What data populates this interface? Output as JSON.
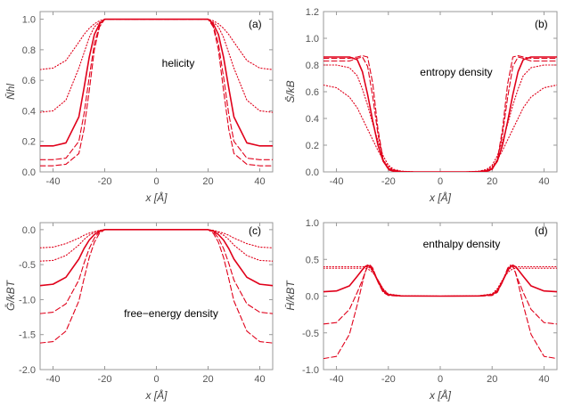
{
  "chart_data": [
    {
      "panel": "a",
      "type": "line",
      "panel_label": "(a)",
      "annotation": "helicity",
      "xlabel": "x [Å]",
      "ylabel": "N̄hl",
      "xlim": [
        -45,
        45
      ],
      "ylim": [
        0.0,
        1.05
      ],
      "xticks": [
        "-40",
        "-20",
        "0",
        "20",
        "40"
      ],
      "yticks": [
        "0.0",
        "0.2",
        "0.4",
        "0.6",
        "0.8",
        "1.0"
      ],
      "x": [
        -45,
        -40,
        -35,
        -30,
        -28,
        -26,
        -24,
        -22,
        -20,
        -15,
        -10,
        -5,
        0,
        5,
        10,
        15,
        20,
        22,
        24,
        26,
        28,
        30,
        35,
        40,
        45
      ],
      "series": [
        {
          "style": "dotted",
          "values": [
            0.67,
            0.68,
            0.73,
            0.85,
            0.9,
            0.94,
            0.97,
            0.99,
            1.0,
            1.0,
            1.0,
            1.0,
            1.0,
            1.0,
            1.0,
            1.0,
            1.0,
            0.99,
            0.97,
            0.94,
            0.9,
            0.85,
            0.73,
            0.68,
            0.67
          ]
        },
        {
          "style": "dotted",
          "values": [
            0.39,
            0.4,
            0.47,
            0.68,
            0.78,
            0.88,
            0.95,
            0.98,
            1.0,
            1.0,
            1.0,
            1.0,
            1.0,
            1.0,
            1.0,
            1.0,
            1.0,
            0.98,
            0.95,
            0.88,
            0.78,
            0.68,
            0.47,
            0.4,
            0.39
          ]
        },
        {
          "style": "solid",
          "values": [
            0.17,
            0.17,
            0.19,
            0.36,
            0.55,
            0.75,
            0.9,
            0.97,
            1.0,
            1.0,
            1.0,
            1.0,
            1.0,
            1.0,
            1.0,
            1.0,
            1.0,
            0.97,
            0.9,
            0.75,
            0.55,
            0.36,
            0.19,
            0.17,
            0.17
          ]
        },
        {
          "style": "dashed",
          "values": [
            0.08,
            0.08,
            0.09,
            0.2,
            0.38,
            0.62,
            0.84,
            0.96,
            1.0,
            1.0,
            1.0,
            1.0,
            1.0,
            1.0,
            1.0,
            1.0,
            1.0,
            0.96,
            0.84,
            0.62,
            0.38,
            0.2,
            0.09,
            0.08,
            0.08
          ]
        },
        {
          "style": "dashed",
          "values": [
            0.04,
            0.04,
            0.05,
            0.12,
            0.28,
            0.53,
            0.8,
            0.95,
            1.0,
            1.0,
            1.0,
            1.0,
            1.0,
            1.0,
            1.0,
            1.0,
            1.0,
            0.95,
            0.8,
            0.53,
            0.28,
            0.12,
            0.05,
            0.04,
            0.04
          ]
        }
      ]
    },
    {
      "panel": "b",
      "type": "line",
      "panel_label": "(b)",
      "annotation": "entropy density",
      "xlabel": "x [Å]",
      "ylabel": "S̄/kB",
      "xlim": [
        -45,
        45
      ],
      "ylim": [
        0.0,
        1.2
      ],
      "xticks": [
        "-40",
        "-20",
        "0",
        "20",
        "40"
      ],
      "yticks": [
        "0.0",
        "0.2",
        "0.4",
        "0.6",
        "0.8",
        "1.0",
        "1.2"
      ],
      "x": [
        -45,
        -40,
        -35,
        -32,
        -30,
        -28,
        -26,
        -24,
        -22,
        -20,
        -18,
        -15,
        -10,
        0,
        10,
        15,
        18,
        20,
        22,
        24,
        26,
        28,
        30,
        32,
        35,
        40,
        45
      ],
      "series": [
        {
          "style": "dotted",
          "values": [
            0.65,
            0.63,
            0.56,
            0.48,
            0.4,
            0.32,
            0.24,
            0.16,
            0.09,
            0.04,
            0.015,
            0.005,
            0.0,
            0.0,
            0.0,
            0.005,
            0.015,
            0.04,
            0.09,
            0.16,
            0.24,
            0.32,
            0.4,
            0.48,
            0.56,
            0.63,
            0.65
          ]
        },
        {
          "style": "dotted",
          "values": [
            0.8,
            0.8,
            0.78,
            0.72,
            0.62,
            0.5,
            0.36,
            0.23,
            0.12,
            0.05,
            0.02,
            0.005,
            0.0,
            0.0,
            0.0,
            0.005,
            0.02,
            0.05,
            0.12,
            0.23,
            0.36,
            0.5,
            0.62,
            0.72,
            0.78,
            0.8,
            0.8
          ]
        },
        {
          "style": "solid",
          "values": [
            0.86,
            0.86,
            0.86,
            0.84,
            0.75,
            0.58,
            0.38,
            0.2,
            0.08,
            0.025,
            0.01,
            0.002,
            0.0,
            0.0,
            0.0,
            0.002,
            0.01,
            0.025,
            0.08,
            0.2,
            0.38,
            0.58,
            0.75,
            0.84,
            0.86,
            0.86,
            0.86
          ]
        },
        {
          "style": "dashed",
          "values": [
            0.83,
            0.83,
            0.83,
            0.85,
            0.86,
            0.79,
            0.56,
            0.28,
            0.09,
            0.02,
            0.005,
            0.0,
            0.0,
            0.0,
            0.0,
            0.0,
            0.005,
            0.02,
            0.09,
            0.28,
            0.56,
            0.79,
            0.86,
            0.85,
            0.83,
            0.83,
            0.83
          ]
        },
        {
          "style": "dashed",
          "values": [
            0.85,
            0.85,
            0.85,
            0.86,
            0.87,
            0.86,
            0.66,
            0.32,
            0.09,
            0.015,
            0.003,
            0.0,
            0.0,
            0.0,
            0.0,
            0.0,
            0.003,
            0.015,
            0.09,
            0.32,
            0.66,
            0.86,
            0.87,
            0.86,
            0.85,
            0.85,
            0.85
          ]
        }
      ]
    },
    {
      "panel": "c",
      "type": "line",
      "panel_label": "(c)",
      "annotation": "free−energy density",
      "xlabel": "x [Å]",
      "ylabel": "Ḡ/kBT",
      "xlim": [
        -45,
        45
      ],
      "ylim": [
        -2.0,
        0.1
      ],
      "xticks": [
        "-40",
        "-20",
        "0",
        "20",
        "40"
      ],
      "yticks": [
        "0.0",
        "-0.5",
        "-1.0",
        "-1.5",
        "-2.0"
      ],
      "x": [
        -45,
        -40,
        -35,
        -30,
        -28,
        -26,
        -24,
        -22,
        -20,
        -15,
        -10,
        -5,
        0,
        5,
        10,
        15,
        20,
        22,
        24,
        26,
        28,
        30,
        35,
        40,
        45
      ],
      "series": [
        {
          "style": "dotted",
          "values": [
            -0.26,
            -0.25,
            -0.2,
            -0.12,
            -0.08,
            -0.05,
            -0.03,
            -0.01,
            0.0,
            0.0,
            0.0,
            0.0,
            0.0,
            0.0,
            0.0,
            0.0,
            0.0,
            -0.01,
            -0.03,
            -0.05,
            -0.08,
            -0.12,
            -0.2,
            -0.25,
            -0.26
          ]
        },
        {
          "style": "dotted",
          "values": [
            -0.45,
            -0.44,
            -0.37,
            -0.22,
            -0.14,
            -0.08,
            -0.04,
            -0.01,
            0.0,
            0.0,
            0.0,
            0.0,
            0.0,
            0.0,
            0.0,
            0.0,
            0.0,
            -0.01,
            -0.04,
            -0.08,
            -0.14,
            -0.22,
            -0.37,
            -0.44,
            -0.45
          ]
        },
        {
          "style": "solid",
          "values": [
            -0.8,
            -0.78,
            -0.68,
            -0.42,
            -0.27,
            -0.15,
            -0.07,
            -0.02,
            0.0,
            0.0,
            0.0,
            0.0,
            0.0,
            0.0,
            0.0,
            0.0,
            0.0,
            -0.02,
            -0.07,
            -0.15,
            -0.27,
            -0.42,
            -0.68,
            -0.78,
            -0.8
          ]
        },
        {
          "style": "dashed",
          "values": [
            -1.2,
            -1.18,
            -1.06,
            -0.72,
            -0.48,
            -0.27,
            -0.12,
            -0.03,
            0.0,
            0.0,
            0.0,
            0.0,
            0.0,
            0.0,
            0.0,
            0.0,
            0.0,
            -0.03,
            -0.12,
            -0.27,
            -0.48,
            -0.72,
            -1.06,
            -1.18,
            -1.2
          ]
        },
        {
          "style": "dashed",
          "values": [
            -1.62,
            -1.6,
            -1.45,
            -1.02,
            -0.7,
            -0.4,
            -0.18,
            -0.05,
            0.0,
            0.0,
            0.0,
            0.0,
            0.0,
            0.0,
            0.0,
            0.0,
            0.0,
            -0.05,
            -0.18,
            -0.4,
            -0.7,
            -1.02,
            -1.45,
            -1.6,
            -1.62
          ]
        }
      ]
    },
    {
      "panel": "d",
      "type": "line",
      "panel_label": "(d)",
      "annotation": "enthalpy density",
      "xlabel": "x [Å]",
      "ylabel": "H̄/kBT",
      "xlim": [
        -45,
        45
      ],
      "ylim": [
        -1.0,
        1.0
      ],
      "xticks": [
        "-40",
        "-20",
        "0",
        "20",
        "40"
      ],
      "yticks": [
        "-1.0",
        "-0.5",
        "0.0",
        "0.5",
        "1.0"
      ],
      "x": [
        -45,
        -40,
        -35,
        -32,
        -30,
        -29,
        -28,
        -27,
        -26,
        -24,
        -22,
        -20,
        -15,
        0,
        15,
        20,
        22,
        24,
        26,
        27,
        28,
        29,
        30,
        32,
        35,
        40,
        45
      ],
      "series": [
        {
          "style": "dotted",
          "values": [
            0.38,
            0.38,
            0.38,
            0.38,
            0.38,
            0.38,
            0.37,
            0.35,
            0.32,
            0.22,
            0.1,
            0.03,
            0.005,
            0.0,
            0.005,
            0.03,
            0.1,
            0.22,
            0.32,
            0.35,
            0.37,
            0.38,
            0.38,
            0.38,
            0.38,
            0.38,
            0.38
          ]
        },
        {
          "style": "dotted",
          "values": [
            0.4,
            0.4,
            0.4,
            0.4,
            0.4,
            0.4,
            0.4,
            0.38,
            0.34,
            0.22,
            0.09,
            0.02,
            0.003,
            0.0,
            0.003,
            0.02,
            0.09,
            0.22,
            0.34,
            0.38,
            0.4,
            0.4,
            0.4,
            0.4,
            0.4,
            0.4,
            0.4
          ]
        },
        {
          "style": "solid",
          "values": [
            0.06,
            0.07,
            0.14,
            0.27,
            0.36,
            0.4,
            0.42,
            0.4,
            0.35,
            0.2,
            0.07,
            0.02,
            0.002,
            0.0,
            0.002,
            0.02,
            0.07,
            0.2,
            0.35,
            0.4,
            0.42,
            0.4,
            0.36,
            0.27,
            0.14,
            0.07,
            0.06
          ]
        },
        {
          "style": "dashed",
          "values": [
            -0.38,
            -0.36,
            -0.18,
            0.05,
            0.22,
            0.32,
            0.4,
            0.42,
            0.38,
            0.2,
            0.06,
            0.01,
            0.0,
            0.0,
            0.0,
            0.01,
            0.06,
            0.2,
            0.38,
            0.42,
            0.4,
            0.32,
            0.22,
            0.05,
            -0.18,
            -0.36,
            -0.38
          ]
        },
        {
          "style": "dashed",
          "values": [
            -0.85,
            -0.82,
            -0.52,
            -0.12,
            0.18,
            0.32,
            0.41,
            0.42,
            0.38,
            0.19,
            0.05,
            0.01,
            0.0,
            0.0,
            0.0,
            0.01,
            0.05,
            0.19,
            0.38,
            0.42,
            0.41,
            0.32,
            0.18,
            -0.12,
            -0.52,
            -0.82,
            -0.85
          ]
        }
      ]
    }
  ],
  "colors": {
    "line": "#e0001a",
    "axis": "#999999",
    "text": "#444444"
  }
}
